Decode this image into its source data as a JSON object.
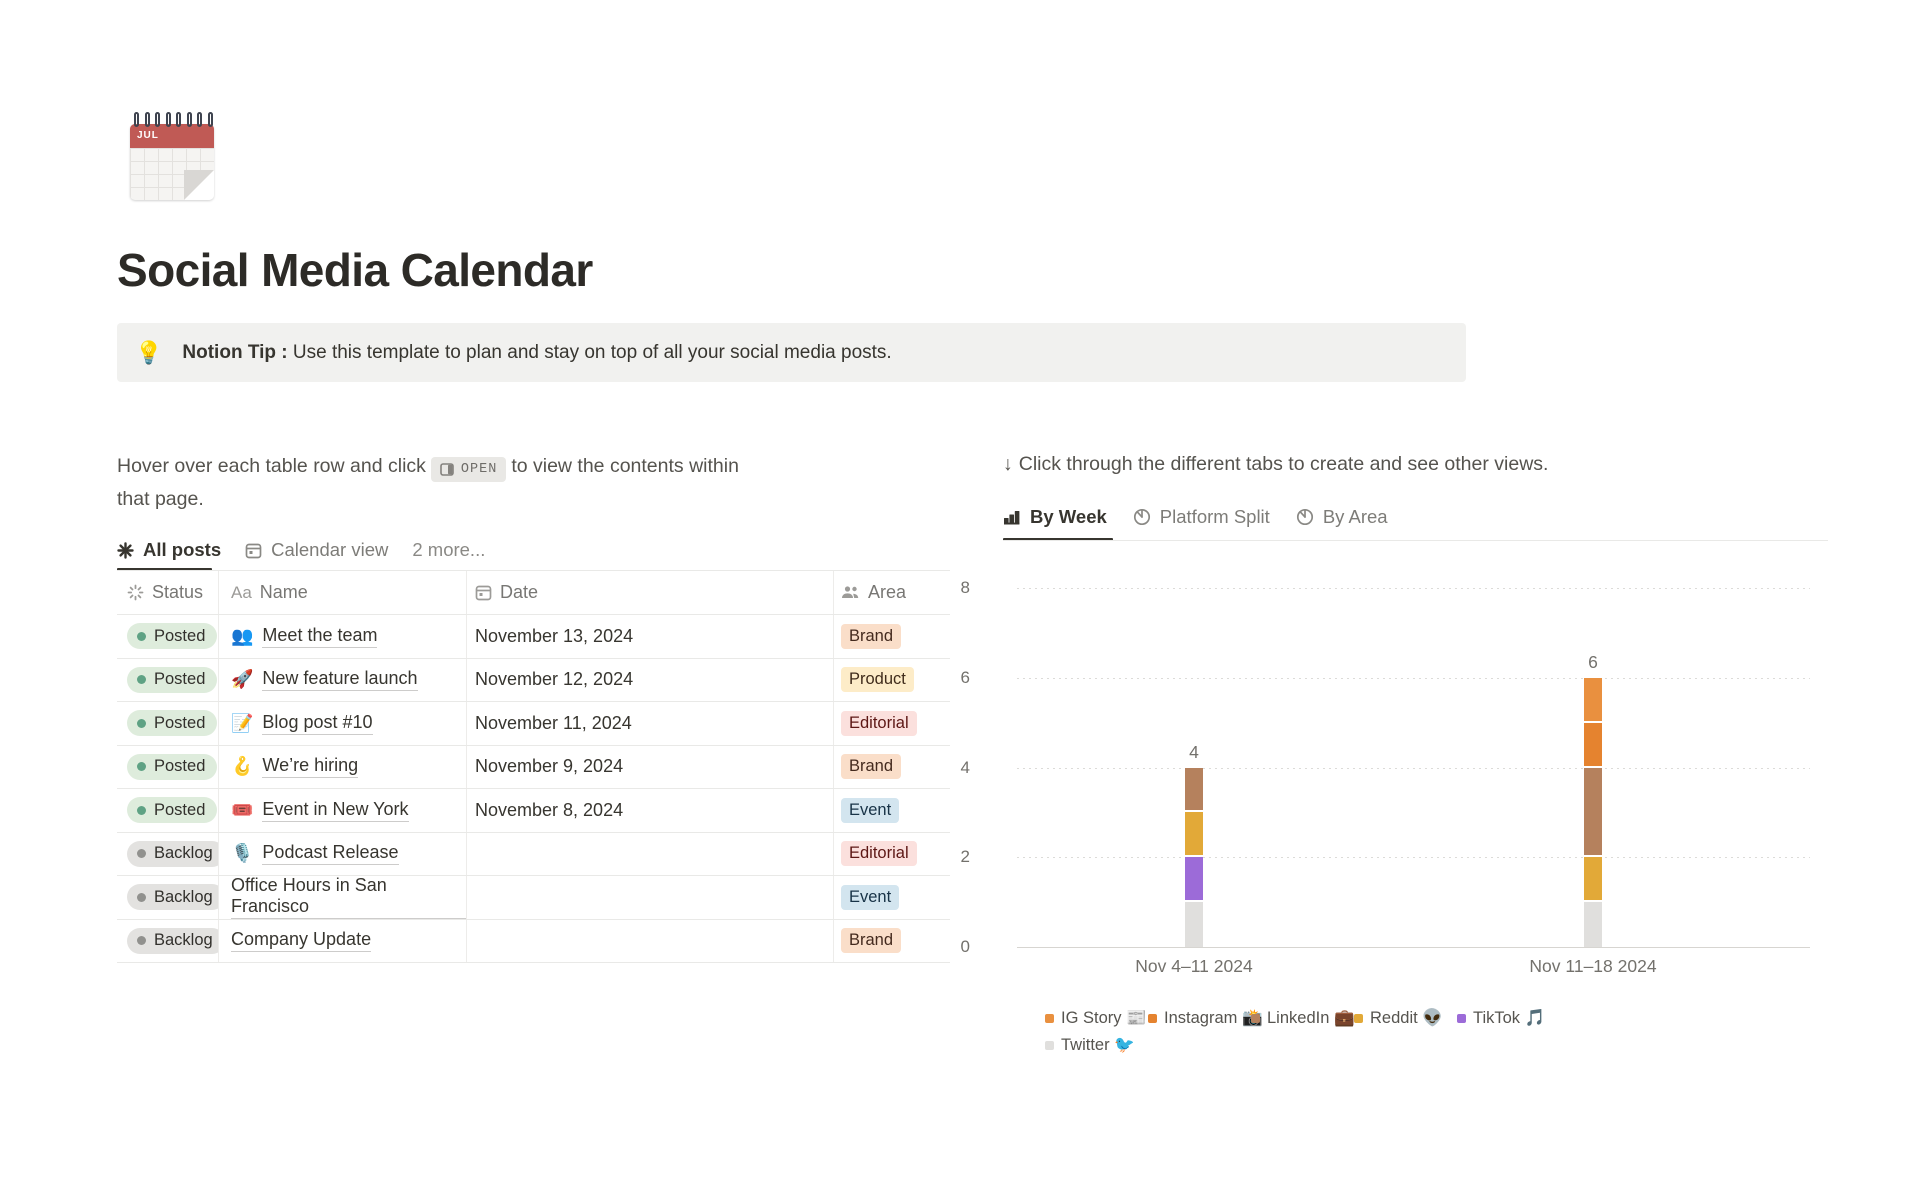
{
  "page": {
    "icon_month": "JUL",
    "title": "Social Media Calendar"
  },
  "callout": {
    "emoji": "💡",
    "bold": "Notion Tip :",
    "text": " Use this template to plan and stay on top of all your social media posts."
  },
  "left": {
    "instruction": {
      "part1": "Hover over each table row and click",
      "open_label": "OPEN",
      "part2": "to view the contents within that page."
    },
    "tabs": [
      {
        "label": "All posts",
        "icon": "asterisk-icon",
        "active": true
      },
      {
        "label": "Calendar view",
        "icon": "calendar-icon",
        "active": false
      },
      {
        "label": "2 more...",
        "icon": null,
        "active": false
      }
    ],
    "table": {
      "headers": [
        {
          "label": "Status",
          "icon": "status-spinner-icon"
        },
        {
          "label": "Name",
          "icon": "aa-icon"
        },
        {
          "label": "Date",
          "icon": "calendar-icon"
        },
        {
          "label": "Area",
          "icon": "people-icon"
        }
      ],
      "rows": [
        {
          "status": "Posted",
          "status_kind": "green",
          "emoji": "👥",
          "name": "Meet the team",
          "date": "November 13, 2024",
          "area": "Brand",
          "area_kind": "orange"
        },
        {
          "status": "Posted",
          "status_kind": "green",
          "emoji": "🚀",
          "name": "New feature launch",
          "date": "November 12, 2024",
          "area": "Product",
          "area_kind": "yellow"
        },
        {
          "status": "Posted",
          "status_kind": "green",
          "emoji": "📝",
          "name": "Blog post #10",
          "date": "November 11, 2024",
          "area": "Editorial",
          "area_kind": "red"
        },
        {
          "status": "Posted",
          "status_kind": "green",
          "emoji": "🪝",
          "name": "We’re hiring",
          "date": "November 9, 2024",
          "area": "Brand",
          "area_kind": "orange"
        },
        {
          "status": "Posted",
          "status_kind": "green",
          "emoji": "🎟️",
          "name": "Event in New York",
          "date": "November 8, 2024",
          "area": "Event",
          "area_kind": "blue"
        },
        {
          "status": "Backlog",
          "status_kind": "gray",
          "emoji": "🎙️",
          "name": "Podcast Release",
          "date": "",
          "area": "Editorial",
          "area_kind": "red"
        },
        {
          "status": "Backlog",
          "status_kind": "gray",
          "emoji": "",
          "name": "Office Hours in San Francisco",
          "date": "",
          "area": "Event",
          "area_kind": "blue"
        },
        {
          "status": "Backlog",
          "status_kind": "gray",
          "emoji": "",
          "name": "Company Update",
          "date": "",
          "area": "Brand",
          "area_kind": "orange"
        }
      ]
    }
  },
  "right": {
    "arrow": "↓",
    "instruction": "Click through the different tabs to create and see other views.",
    "tabs": [
      {
        "label": "By Week",
        "icon": "bar-chart-icon",
        "active": true
      },
      {
        "label": "Platform Split",
        "icon": "pie-chart-icon",
        "active": false
      },
      {
        "label": "By Area",
        "icon": "pie-chart-icon",
        "active": false
      }
    ]
  },
  "chart_data": {
    "type": "bar",
    "stacked": true,
    "categories": [
      "Nov 4–11 2024",
      "Nov 11–18 2024"
    ],
    "series": [
      {
        "name": "IG Story 📰",
        "color": "#E9903F",
        "values": [
          0,
          1
        ]
      },
      {
        "name": "Instagram 📸",
        "color": "#E5832F",
        "values": [
          0,
          1
        ]
      },
      {
        "name": "LinkedIn 💼",
        "color": "#B5815D",
        "values": [
          1,
          2
        ]
      },
      {
        "name": "Reddit 👽",
        "color": "#E2A938",
        "values": [
          1,
          1
        ]
      },
      {
        "name": "TikTok 🎵",
        "color": "#9C6BD8",
        "values": [
          1,
          0
        ]
      },
      {
        "name": "Twitter 🐦",
        "color": "#E0DFDD",
        "values": [
          1,
          1
        ]
      }
    ],
    "totals": [
      4,
      6
    ],
    "ylim": [
      0,
      8
    ],
    "yticks": [
      0,
      2,
      4,
      6,
      8
    ],
    "grid": "dotted-horizontal",
    "legend_position": "bottom-left",
    "title": "",
    "xlabel": "",
    "ylabel": ""
  }
}
